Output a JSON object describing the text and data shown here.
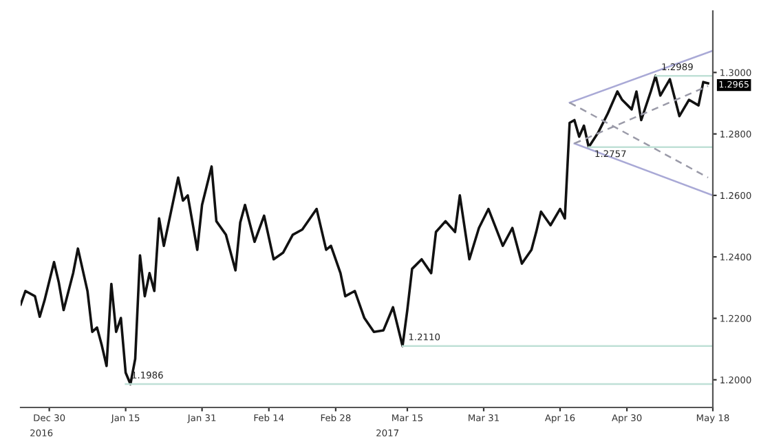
{
  "chart_data": {
    "type": "line",
    "xlim": [
      "2016-12-24",
      "2017-05-18"
    ],
    "ylim": [
      1.191,
      1.32
    ],
    "xticks": [
      {
        "value": "2016-12-30",
        "label": "Dec 30"
      },
      {
        "value": "2017-01-15",
        "label": "Jan 15"
      },
      {
        "value": "2017-01-31",
        "label": "Jan 31"
      },
      {
        "value": "2017-02-14",
        "label": "Feb 14"
      },
      {
        "value": "2017-02-28",
        "label": "Feb 28"
      },
      {
        "value": "2017-03-15",
        "label": "Mar 15"
      },
      {
        "value": "2017-03-31",
        "label": "Mar 31"
      },
      {
        "value": "2017-04-16",
        "label": "Apr 16"
      },
      {
        "value": "2017-04-30",
        "label": "Apr 30"
      },
      {
        "value": "2017-05-18",
        "label": "May 18"
      }
    ],
    "yticks": [
      {
        "value": 1.2,
        "label": "1.2000"
      },
      {
        "value": 1.22,
        "label": "1.2200"
      },
      {
        "value": 1.24,
        "label": "1.2400"
      },
      {
        "value": 1.26,
        "label": "1.2600"
      },
      {
        "value": 1.28,
        "label": "1.2800"
      },
      {
        "value": 1.3,
        "label": "1.3000"
      }
    ],
    "grid": false,
    "legend": false,
    "series": [
      {
        "color": "#111111",
        "line_style": "solid",
        "x": [
          "2016-12-24",
          "2016-12-25",
          "2016-12-27",
          "2016-12-28",
          "2016-12-29",
          "2016-12-31",
          "2017-01-01",
          "2017-01-02",
          "2017-01-04",
          "2017-01-05",
          "2017-01-07",
          "2017-01-08",
          "2017-01-09",
          "2017-01-10",
          "2017-01-11",
          "2017-01-12",
          "2017-01-13",
          "2017-01-14",
          "2017-01-15",
          "2017-01-16",
          "2017-01-17",
          "2017-01-18",
          "2017-01-19",
          "2017-01-20",
          "2017-01-21",
          "2017-01-22",
          "2017-01-23",
          "2017-01-26",
          "2017-01-27",
          "2017-01-28",
          "2017-01-30",
          "2017-01-31",
          "2017-02-02",
          "2017-02-03",
          "2017-02-05",
          "2017-02-07",
          "2017-02-08",
          "2017-02-09",
          "2017-02-11",
          "2017-02-13",
          "2017-02-15",
          "2017-02-17",
          "2017-02-19",
          "2017-02-21",
          "2017-02-24",
          "2017-02-26",
          "2017-02-27",
          "2017-03-01",
          "2017-03-02",
          "2017-03-04",
          "2017-03-06",
          "2017-03-08",
          "2017-03-10",
          "2017-03-12",
          "2017-03-14",
          "2017-03-15",
          "2017-03-16",
          "2017-03-18",
          "2017-03-20",
          "2017-03-21",
          "2017-03-23",
          "2017-03-25",
          "2017-03-26",
          "2017-03-28",
          "2017-03-30",
          "2017-04-01",
          "2017-04-04",
          "2017-04-06",
          "2017-04-08",
          "2017-04-10",
          "2017-04-11",
          "2017-04-12",
          "2017-04-14",
          "2017-04-16",
          "2017-04-17",
          "2017-04-18",
          "2017-04-19",
          "2017-04-20",
          "2017-04-21",
          "2017-04-22",
          "2017-04-24",
          "2017-04-26",
          "2017-04-28",
          "2017-04-29",
          "2017-05-01",
          "2017-05-02",
          "2017-05-03",
          "2017-05-05",
          "2017-05-06",
          "2017-05-07",
          "2017-05-09",
          "2017-05-11",
          "2017-05-13",
          "2017-05-15",
          "2017-05-16",
          "2017-05-17"
        ],
        "values": [
          1.2245,
          1.2289,
          1.2272,
          1.2205,
          1.2258,
          1.2383,
          1.2316,
          1.2227,
          1.2347,
          1.2427,
          1.2289,
          1.2156,
          1.217,
          1.2112,
          1.2045,
          1.2312,
          1.2156,
          1.2201,
          1.2023,
          1.1986,
          1.2068,
          1.2405,
          1.2272,
          1.2347,
          1.2289,
          1.2525,
          1.2436,
          1.2658,
          1.2583,
          1.26,
          1.2423,
          1.2569,
          1.2694,
          1.2516,
          1.2472,
          1.2356,
          1.2512,
          1.2569,
          1.2449,
          1.2534,
          1.2392,
          1.2414,
          1.2472,
          1.2489,
          1.2556,
          1.2423,
          1.2436,
          1.2347,
          1.2272,
          1.2289,
          1.2201,
          1.2156,
          1.2161,
          1.2236,
          1.211,
          1.2227,
          1.2361,
          1.2392,
          1.2347,
          1.2481,
          1.2516,
          1.2481,
          1.26,
          1.2392,
          1.2494,
          1.2556,
          1.2436,
          1.2494,
          1.2378,
          1.2423,
          1.2481,
          1.2547,
          1.2503,
          1.2556,
          1.2525,
          1.2836,
          1.2845,
          1.2791,
          1.2827,
          1.2757,
          1.2805,
          1.2867,
          1.2938,
          1.2911,
          1.288,
          1.2938,
          1.2845,
          1.2938,
          1.2989,
          1.2925,
          1.2978,
          1.2858,
          1.2911,
          1.2893,
          1.2969,
          1.2965
        ]
      },
      {
        "color": "#a9a9d6",
        "line_style": "solid",
        "x": [
          "2017-04-18",
          "2017-05-18"
        ],
        "values": [
          1.2902,
          1.3071
        ]
      },
      {
        "color": "#a9a9d6",
        "line_style": "solid",
        "x": [
          "2017-04-19",
          "2017-05-18"
        ],
        "values": [
          1.2769,
          1.26
        ]
      },
      {
        "color": "#9a9aa8",
        "line_style": "dashed",
        "x": [
          "2017-04-18",
          "2017-05-17"
        ],
        "values": [
          1.2902,
          1.2658
        ]
      },
      {
        "color": "#9a9aa8",
        "line_style": "dashed",
        "x": [
          "2017-04-19",
          "2017-05-17"
        ],
        "values": [
          1.2769,
          1.2956
        ]
      },
      {
        "color": "#bfe0d6",
        "line_style": "solid",
        "x": [
          "2017-01-15",
          "2017-05-18"
        ],
        "values": [
          1.1986,
          1.1986
        ]
      },
      {
        "color": "#bfe0d6",
        "line_style": "solid",
        "x": [
          "2017-03-14",
          "2017-05-18"
        ],
        "values": [
          1.211,
          1.211
        ]
      },
      {
        "color": "#bfe0d6",
        "line_style": "solid",
        "x": [
          "2017-04-22",
          "2017-05-18"
        ],
        "values": [
          1.2757,
          1.2757
        ]
      },
      {
        "color": "#bfe0d6",
        "line_style": "solid",
        "x": [
          "2017-05-06",
          "2017-05-18"
        ],
        "values": [
          1.2989,
          1.2989
        ]
      }
    ],
    "annotations": [
      {
        "text": "1.1986",
        "x": "2017-01-15",
        "y": 1.1986
      },
      {
        "text": "1.2110",
        "x": "2017-03-14",
        "y": 1.211
      },
      {
        "text": "1.2757",
        "x": "2017-04-22",
        "y": 1.2757
      },
      {
        "text": "1.2989",
        "x": "2017-05-06",
        "y": 1.2989
      },
      {
        "text": "1.2965",
        "x": "2017-05-18",
        "y": 1.2965
      },
      "2016",
      "2017"
    ]
  }
}
